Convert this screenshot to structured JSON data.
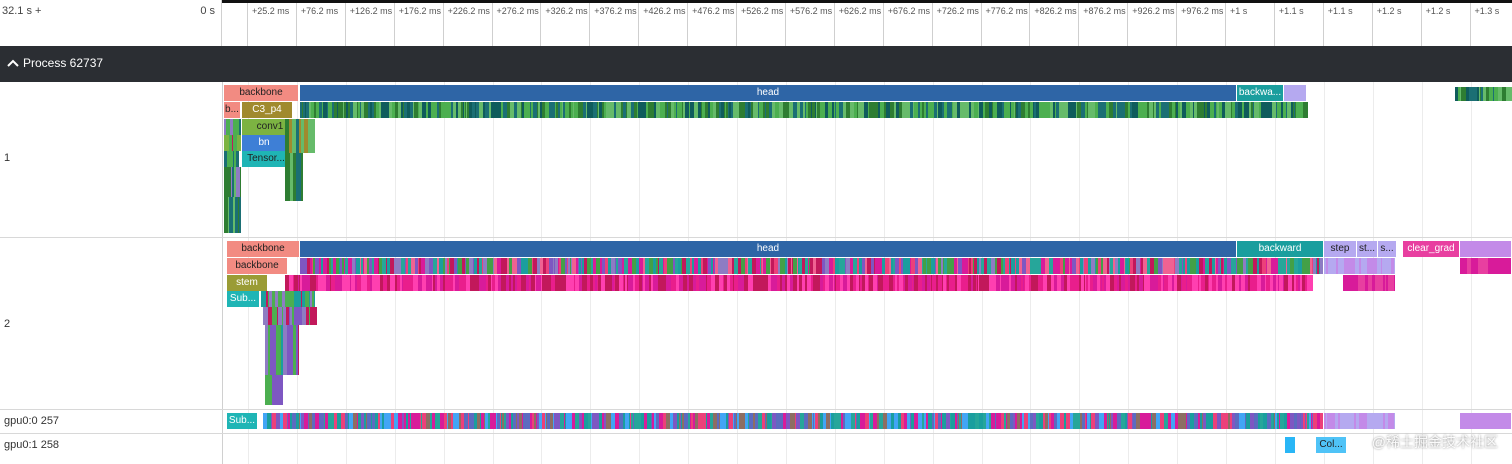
{
  "ruler": {
    "start_label": "32.1 s +",
    "zero_label": "0 s",
    "ticks": [
      "+25.2 ms",
      "+76.2 ms",
      "+126.2 ms",
      "+176.2 ms",
      "+226.2 ms",
      "+276.2 ms",
      "+326.2 ms",
      "+376.2 ms",
      "+426.2 ms",
      "+476.2 ms",
      "+526.2 ms",
      "+576.2 ms",
      "+626.2 ms",
      "+676.2 ms",
      "+726.2 ms",
      "+776.2 ms",
      "+826.2 ms",
      "+876.2 ms",
      "+926.2 ms",
      "+976.2 ms",
      "+1 s",
      "+1.1 s",
      "+1.1 s",
      "+1.2 s",
      "+1.2 s",
      "+1.3 s"
    ]
  },
  "process": {
    "label": "Process 62737"
  },
  "tracks": {
    "t1": {
      "name": "1",
      "slices": {
        "backbone": "backbone",
        "b": "b...",
        "c3p4": "C3_p4",
        "conv1": "conv1",
        "bn": "bn",
        "tensor": "Tensor...",
        "head": "head",
        "backward": "backwa..."
      }
    },
    "t2": {
      "name": "2",
      "slices": {
        "backbone1": "backbone",
        "backbone2": "backbone",
        "stem": "stem",
        "sub": "Sub...",
        "head": "head",
        "backward": "backward",
        "step": "step",
        "st": "st...",
        "s": "s...",
        "clear_grad": "clear_grad"
      }
    },
    "gpu0": {
      "name": "gpu0:0 257",
      "slices": {
        "sub": "Sub..."
      }
    },
    "gpu1": {
      "name": "gpu0:1 258",
      "slices": {
        "col": "Col..."
      }
    }
  },
  "colors": {
    "backbone": "#f28b82",
    "head": "#2e65a6",
    "backward": "#1a9e9e",
    "c3p4": "#a08a2e",
    "conv1": "#7cb342",
    "bn": "#3e7fd6",
    "tensor": "#1fb5b5",
    "stem": "#9a9c35",
    "clear_grad": "#e83fa0",
    "step": "#b88ae8",
    "green": "#4caf50",
    "teal": "#1b6f74",
    "magenta": "#d81b9a"
  },
  "watermark": "@稀土掘金技术社区"
}
